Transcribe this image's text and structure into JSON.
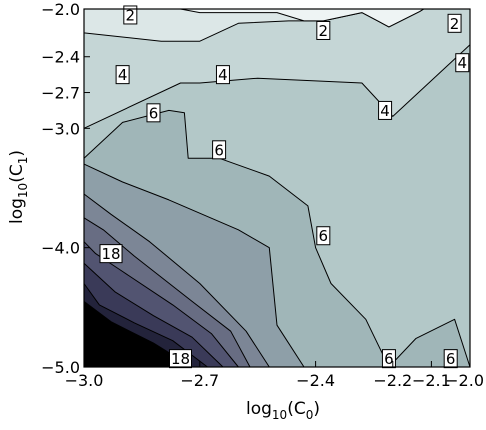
{
  "chart_data": {
    "type": "contour",
    "title": "",
    "xlabel": {
      "base": "log",
      "sub": "10",
      "rest": "(C",
      "sub2": "0",
      "close": ")"
    },
    "ylabel": {
      "base": "log",
      "sub": "10",
      "rest": "(C",
      "sub2": "1",
      "close": ")"
    },
    "xlim": [
      -3.0,
      -2.0
    ],
    "ylim": [
      -5.0,
      -2.0
    ],
    "x_ticks": [
      {
        "value": -3.0,
        "label": "−3.0"
      },
      {
        "value": -2.7,
        "label": "−2.7"
      },
      {
        "value": -2.4,
        "label": "−2.4"
      },
      {
        "value": -2.2,
        "label": "−2.2"
      },
      {
        "value": -2.1,
        "label": "−2.1"
      },
      {
        "value": -2.0,
        "label": "−2.0"
      }
    ],
    "y_ticks": [
      {
        "value": -5.0,
        "label": "−5.0"
      },
      {
        "value": -4.0,
        "label": "−4.0"
      },
      {
        "value": -3.0,
        "label": "−3.0"
      },
      {
        "value": -2.7,
        "label": "−2.7"
      },
      {
        "value": -2.4,
        "label": "−2.4"
      },
      {
        "value": -2.0,
        "label": "−2.0"
      }
    ],
    "grid": false,
    "regions": [
      {
        "fill": "#b3c8c8",
        "points": [
          [
            -3.0,
            -5.0
          ],
          [
            -2.0,
            -5.0
          ],
          [
            -2.0,
            -2.0
          ],
          [
            -3.0,
            -2.0
          ]
        ]
      },
      {
        "fill": "#c5d6d6",
        "points": [
          [
            -3.0,
            -2.0
          ],
          [
            -3.0,
            -3.0
          ],
          [
            -2.75,
            -2.62
          ],
          [
            -2.7,
            -2.62
          ],
          [
            -2.55,
            -2.58
          ],
          [
            -2.28,
            -2.62
          ],
          [
            -2.2,
            -2.9
          ],
          [
            -2.0,
            -2.3
          ],
          [
            -2.0,
            -2.0
          ]
        ]
      },
      {
        "fill": "#dce7e7",
        "points": [
          [
            -3.0,
            -2.0
          ],
          [
            -3.0,
            -2.2
          ],
          [
            -2.8,
            -2.27
          ],
          [
            -2.7,
            -2.27
          ],
          [
            -2.6,
            -2.12
          ],
          [
            -2.47,
            -2.1
          ],
          [
            -2.38,
            -2.1
          ],
          [
            -2.28,
            -2.03
          ],
          [
            -2.21,
            -2.15
          ],
          [
            -2.13,
            -2.02
          ],
          [
            -2.12,
            -2.0
          ]
        ]
      },
      {
        "fill": "#eef4f4",
        "points": [
          [
            -2.75,
            -2.0
          ],
          [
            -2.7,
            -2.03
          ],
          [
            -2.5,
            -2.03
          ],
          [
            -2.43,
            -2.1
          ],
          [
            -2.38,
            -2.1
          ],
          [
            -2.28,
            -2.03
          ],
          [
            -2.21,
            -2.15
          ],
          [
            -2.13,
            -2.02
          ],
          [
            -2.12,
            -2.0
          ]
        ]
      },
      {
        "fill": "#a0b6b8",
        "points": [
          [
            -3.0,
            -5.0
          ],
          [
            -2.0,
            -5.0
          ],
          [
            -2.04,
            -4.6
          ],
          [
            -2.14,
            -4.76
          ],
          [
            -2.21,
            -5.0
          ],
          [
            -2.27,
            -4.6
          ],
          [
            -2.36,
            -4.3
          ],
          [
            -2.4,
            -4.0
          ],
          [
            -2.42,
            -3.65
          ],
          [
            -2.52,
            -3.4
          ],
          [
            -2.65,
            -3.25
          ],
          [
            -2.73,
            -3.25
          ],
          [
            -2.74,
            -2.87
          ],
          [
            -2.78,
            -2.85
          ],
          [
            -2.9,
            -2.95
          ],
          [
            -3.0,
            -3.25
          ]
        ]
      },
      {
        "fill": "#8e9fa8",
        "points": [
          [
            -3.0,
            -5.0
          ],
          [
            -2.43,
            -5.0
          ],
          [
            -2.5,
            -4.65
          ],
          [
            -2.52,
            -4.0
          ],
          [
            -2.6,
            -3.85
          ],
          [
            -2.78,
            -3.6
          ],
          [
            -2.9,
            -3.45
          ],
          [
            -3.0,
            -3.3
          ]
        ]
      },
      {
        "fill": "#7c8696",
        "points": [
          [
            -3.0,
            -5.0
          ],
          [
            -2.52,
            -5.0
          ],
          [
            -2.58,
            -4.7
          ],
          [
            -2.7,
            -4.3
          ],
          [
            -2.83,
            -3.95
          ],
          [
            -2.93,
            -3.72
          ],
          [
            -3.0,
            -3.55
          ]
        ]
      },
      {
        "fill": "#686d83",
        "points": [
          [
            -3.0,
            -5.0
          ],
          [
            -2.57,
            -5.0
          ],
          [
            -2.62,
            -4.7
          ],
          [
            -2.72,
            -4.45
          ],
          [
            -2.87,
            -4.07
          ],
          [
            -2.95,
            -3.85
          ],
          [
            -3.0,
            -3.75
          ]
        ]
      },
      {
        "fill": "#525471",
        "points": [
          [
            -3.0,
            -5.0
          ],
          [
            -2.6,
            -5.0
          ],
          [
            -2.67,
            -4.72
          ],
          [
            -2.77,
            -4.48
          ],
          [
            -2.9,
            -4.2
          ],
          [
            -2.97,
            -4.05
          ],
          [
            -3.0,
            -3.95
          ]
        ]
      },
      {
        "fill": "#3a3a58",
        "points": [
          [
            -3.0,
            -5.0
          ],
          [
            -2.64,
            -5.0
          ],
          [
            -2.72,
            -4.75
          ],
          [
            -2.82,
            -4.57
          ],
          [
            -2.92,
            -4.37
          ],
          [
            -3.0,
            -4.13
          ]
        ]
      },
      {
        "fill": "#23233b",
        "points": [
          [
            -3.0,
            -5.0
          ],
          [
            -2.68,
            -5.0
          ],
          [
            -2.77,
            -4.78
          ],
          [
            -2.87,
            -4.63
          ],
          [
            -2.96,
            -4.48
          ],
          [
            -3.0,
            -4.3
          ]
        ]
      },
      {
        "fill": "#000000",
        "points": [
          [
            -3.0,
            -5.0
          ],
          [
            -2.72,
            -5.0
          ],
          [
            -2.82,
            -4.8
          ],
          [
            -2.93,
            -4.62
          ],
          [
            -3.0,
            -4.45
          ]
        ]
      }
    ],
    "contour_labels": [
      {
        "text": "2",
        "x": -2.88,
        "y": -2.05
      },
      {
        "text": "2",
        "x": -2.38,
        "y": -2.18
      },
      {
        "text": "2",
        "x": -2.04,
        "y": -2.12
      },
      {
        "text": "4",
        "x": -2.9,
        "y": -2.55
      },
      {
        "text": "4",
        "x": -2.64,
        "y": -2.55
      },
      {
        "text": "4",
        "x": -2.22,
        "y": -2.85
      },
      {
        "text": "4",
        "x": -2.02,
        "y": -2.45
      },
      {
        "text": "6",
        "x": -2.82,
        "y": -2.87
      },
      {
        "text": "6",
        "x": -2.65,
        "y": -3.18
      },
      {
        "text": "6",
        "x": -2.38,
        "y": -3.9
      },
      {
        "text": "6",
        "x": -2.21,
        "y": -4.93
      },
      {
        "text": "6",
        "x": -2.05,
        "y": -4.93
      },
      {
        "text": "18",
        "x": -2.93,
        "y": -4.05
      },
      {
        "text": "18",
        "x": -2.75,
        "y": -4.93
      }
    ]
  }
}
